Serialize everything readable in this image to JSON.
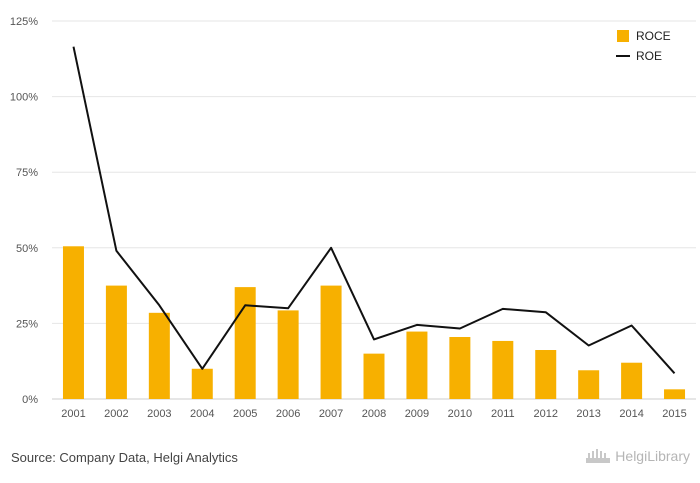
{
  "chart_data": {
    "type": "bar+line",
    "categories": [
      "2001",
      "2002",
      "2003",
      "2004",
      "2005",
      "2006",
      "2007",
      "2008",
      "2009",
      "2010",
      "2011",
      "2012",
      "2013",
      "2014",
      "2015"
    ],
    "series": [
      {
        "name": "ROCE",
        "type": "bar",
        "color": "#F7B000",
        "values": [
          50.5,
          37.5,
          28.5,
          10.0,
          37.0,
          29.3,
          37.5,
          15.0,
          22.3,
          20.5,
          19.2,
          16.2,
          9.5,
          12.0,
          3.2
        ]
      },
      {
        "name": "ROE",
        "type": "line",
        "color": "#111111",
        "values": [
          116.5,
          49.0,
          31.0,
          10.0,
          31.0,
          30.0,
          50.0,
          19.7,
          24.5,
          23.3,
          29.8,
          28.7,
          17.7,
          24.3,
          8.5
        ]
      }
    ],
    "yticks": [
      "0%",
      "25%",
      "50%",
      "75%",
      "100%",
      "125%"
    ],
    "ylim": [
      0,
      125
    ],
    "grid": true,
    "legend_position": "top-right"
  },
  "footer": {
    "source": "Source: Company Data, Helgi Analytics",
    "logo_text": "HelgiLibrary"
  }
}
